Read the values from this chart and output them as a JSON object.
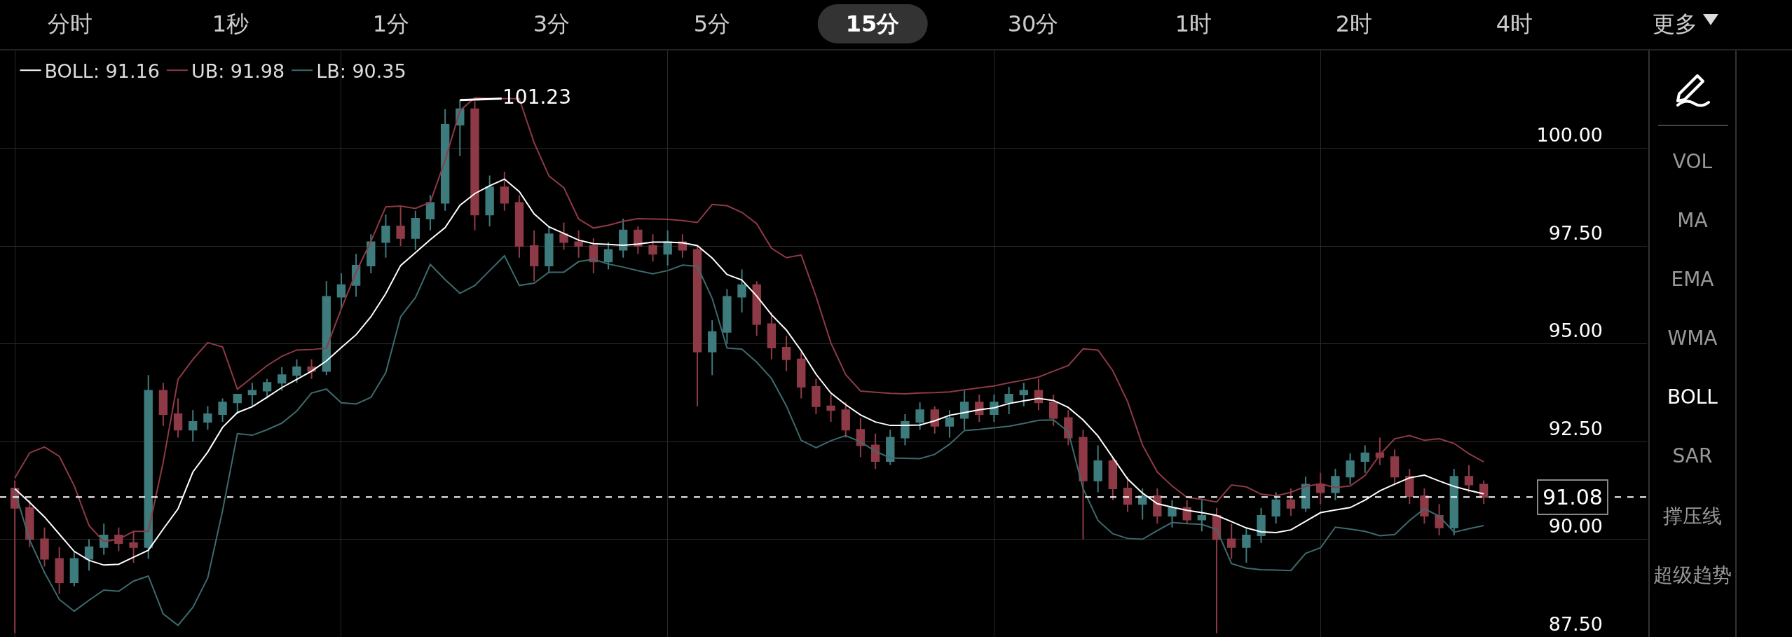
{
  "chart_data": {
    "type": "candlestick",
    "categories": [
      null,
      null,
      null,
      null,
      null,
      null,
      null,
      null,
      null,
      null,
      null,
      null,
      null,
      null,
      null,
      null,
      null,
      null,
      null,
      null,
      null,
      null,
      null,
      null,
      null,
      null,
      null,
      null,
      null,
      null,
      null,
      null,
      null,
      null,
      null,
      null,
      null,
      null,
      null,
      null,
      null,
      null,
      null,
      null,
      null,
      null,
      null,
      null,
      null,
      null,
      null,
      null,
      null,
      null,
      null,
      null,
      null,
      null,
      null,
      null,
      null,
      null,
      null,
      null,
      null,
      null,
      null,
      null,
      null,
      null,
      null,
      null,
      null,
      null,
      null,
      null,
      null,
      null,
      null,
      null,
      null,
      null,
      null,
      null,
      null,
      null,
      null,
      null,
      null,
      null,
      null,
      null,
      null,
      null,
      null,
      null,
      null,
      null,
      null,
      null
    ],
    "ohlc": [
      [
        91.3,
        91.5,
        87.6,
        90.8
      ],
      [
        90.8,
        91.0,
        89.8,
        90.0
      ],
      [
        90.0,
        90.3,
        89.3,
        89.5
      ],
      [
        89.5,
        89.8,
        88.6,
        88.9
      ],
      [
        88.9,
        89.7,
        88.8,
        89.5
      ],
      [
        89.5,
        90.0,
        89.2,
        89.8
      ],
      [
        89.8,
        90.4,
        89.6,
        90.1
      ],
      [
        90.1,
        90.3,
        89.7,
        89.9
      ],
      [
        89.9,
        90.2,
        89.4,
        89.8
      ],
      [
        89.8,
        94.2,
        89.5,
        93.8
      ],
      [
        93.8,
        94.0,
        92.9,
        93.2
      ],
      [
        93.2,
        93.6,
        92.6,
        92.8
      ],
      [
        92.8,
        93.3,
        92.5,
        93.0
      ],
      [
        93.0,
        93.4,
        92.8,
        93.2
      ],
      [
        93.2,
        93.6,
        93.0,
        93.5
      ],
      [
        93.5,
        93.7,
        93.2,
        93.7
      ],
      [
        93.7,
        94.0,
        93.4,
        93.8
      ],
      [
        93.8,
        94.1,
        93.6,
        94.0
      ],
      [
        94.0,
        94.4,
        93.8,
        94.2
      ],
      [
        94.2,
        94.6,
        94.0,
        94.4
      ],
      [
        94.4,
        94.6,
        94.1,
        94.3
      ],
      [
        94.3,
        96.6,
        94.2,
        96.2
      ],
      [
        96.2,
        96.8,
        95.9,
        96.5
      ],
      [
        96.5,
        97.3,
        96.2,
        97.0
      ],
      [
        97.0,
        97.8,
        96.8,
        97.6
      ],
      [
        97.6,
        98.3,
        97.2,
        98.0
      ],
      [
        98.0,
        98.5,
        97.5,
        97.7
      ],
      [
        97.7,
        98.4,
        97.4,
        98.2
      ],
      [
        98.2,
        98.8,
        97.9,
        98.6
      ],
      [
        98.6,
        101.0,
        98.4,
        100.6
      ],
      [
        100.6,
        101.23,
        99.8,
        101.0
      ],
      [
        101.0,
        101.2,
        97.9,
        98.3
      ],
      [
        98.3,
        99.3,
        98.0,
        99.0
      ],
      [
        99.0,
        99.4,
        98.4,
        98.6
      ],
      [
        98.6,
        98.8,
        97.2,
        97.5
      ],
      [
        97.5,
        97.9,
        96.6,
        97.0
      ],
      [
        97.0,
        98.0,
        96.8,
        97.8
      ],
      [
        97.8,
        98.1,
        97.4,
        97.6
      ],
      [
        97.6,
        97.9,
        97.2,
        97.5
      ],
      [
        97.5,
        97.7,
        96.8,
        97.1
      ],
      [
        97.1,
        97.6,
        96.9,
        97.4
      ],
      [
        97.4,
        98.2,
        97.2,
        97.9
      ],
      [
        97.9,
        98.0,
        97.3,
        97.5
      ],
      [
        97.5,
        97.8,
        97.1,
        97.3
      ],
      [
        97.3,
        97.9,
        97.0,
        97.6
      ],
      [
        97.6,
        97.8,
        97.2,
        97.4
      ],
      [
        97.4,
        97.5,
        93.4,
        94.8
      ],
      [
        94.8,
        95.6,
        94.2,
        95.3
      ],
      [
        95.3,
        96.4,
        95.0,
        96.2
      ],
      [
        96.2,
        96.9,
        95.8,
        96.5
      ],
      [
        96.5,
        96.6,
        95.2,
        95.5
      ],
      [
        95.5,
        95.8,
        94.6,
        94.9
      ],
      [
        94.9,
        95.2,
        94.3,
        94.6
      ],
      [
        94.6,
        94.8,
        93.6,
        93.9
      ],
      [
        93.9,
        94.1,
        93.2,
        93.4
      ],
      [
        93.4,
        93.7,
        93.0,
        93.3
      ],
      [
        93.3,
        93.5,
        92.6,
        92.8
      ],
      [
        92.8,
        93.1,
        92.1,
        92.4
      ],
      [
        92.4,
        92.7,
        91.8,
        92.0
      ],
      [
        92.0,
        92.8,
        91.9,
        92.6
      ],
      [
        92.6,
        93.2,
        92.4,
        93.0
      ],
      [
        93.0,
        93.5,
        92.8,
        93.3
      ],
      [
        93.3,
        93.4,
        92.7,
        92.9
      ],
      [
        92.9,
        93.3,
        92.6,
        93.1
      ],
      [
        93.1,
        93.8,
        92.8,
        93.5
      ],
      [
        93.5,
        93.7,
        93.0,
        93.2
      ],
      [
        93.2,
        93.7,
        93.0,
        93.5
      ],
      [
        93.5,
        93.9,
        93.2,
        93.7
      ],
      [
        93.7,
        94.0,
        93.4,
        93.8
      ],
      [
        93.8,
        94.1,
        93.3,
        93.5
      ],
      [
        93.5,
        93.7,
        92.9,
        93.1
      ],
      [
        93.1,
        93.3,
        92.4,
        92.6
      ],
      [
        92.6,
        92.8,
        90.0,
        91.5
      ],
      [
        91.5,
        92.4,
        91.2,
        92.0
      ],
      [
        92.0,
        92.1,
        91.0,
        91.3
      ],
      [
        91.3,
        91.6,
        90.7,
        90.9
      ],
      [
        90.9,
        91.3,
        90.5,
        91.1
      ],
      [
        91.1,
        91.3,
        90.4,
        90.6
      ],
      [
        90.6,
        91.0,
        90.3,
        90.8
      ],
      [
        90.8,
        91.0,
        90.4,
        90.5
      ],
      [
        90.5,
        91.0,
        90.2,
        90.6
      ],
      [
        90.6,
        90.8,
        87.6,
        90.0
      ],
      [
        90.0,
        90.4,
        89.5,
        89.8
      ],
      [
        89.8,
        90.3,
        89.4,
        90.1
      ],
      [
        90.1,
        90.8,
        89.9,
        90.6
      ],
      [
        90.6,
        91.2,
        90.4,
        91.0
      ],
      [
        91.0,
        91.3,
        90.6,
        90.8
      ],
      [
        90.8,
        91.6,
        90.7,
        91.4
      ],
      [
        91.4,
        91.7,
        90.9,
        91.2
      ],
      [
        91.2,
        91.8,
        91.0,
        91.6
      ],
      [
        91.6,
        92.2,
        91.4,
        92.0
      ],
      [
        92.0,
        92.4,
        91.7,
        92.2
      ],
      [
        92.2,
        92.6,
        91.9,
        92.1
      ],
      [
        92.1,
        92.3,
        91.4,
        91.6
      ],
      [
        91.6,
        91.8,
        90.9,
        91.1
      ],
      [
        91.1,
        91.3,
        90.4,
        90.6
      ],
      [
        90.6,
        90.9,
        90.1,
        90.3
      ],
      [
        90.3,
        91.8,
        90.1,
        91.6
      ],
      [
        91.6,
        91.9,
        91.2,
        91.4
      ],
      [
        91.4,
        91.5,
        90.9,
        91.08
      ]
    ],
    "series": [
      {
        "name": "BOLL: 91.16",
        "type": "line",
        "color": "#ffffff",
        "values": [
          91.29,
          90.94,
          90.57,
          90.13,
          89.69,
          89.46,
          89.34,
          89.36,
          89.54,
          89.72,
          90.26,
          90.78,
          91.72,
          92.23,
          92.86,
          93.24,
          93.39,
          93.63,
          93.88,
          94.09,
          94.3,
          94.56,
          94.9,
          95.23,
          95.69,
          96.28,
          97.0,
          97.33,
          97.66,
          97.97,
          98.54,
          98.84,
          99.04,
          99.21,
          98.89,
          98.32,
          97.99,
          97.82,
          97.65,
          97.56,
          97.54,
          97.52,
          97.55,
          97.6,
          97.6,
          97.58,
          97.51,
          97.19,
          96.77,
          96.63,
          96.22,
          95.74,
          95.35,
          94.82,
          94.22,
          93.74,
          93.44,
          93.18,
          93.0,
          92.91,
          92.91,
          92.92,
          93.03,
          93.17,
          93.24,
          93.31,
          93.36,
          93.47,
          93.54,
          93.6,
          93.55,
          93.37,
          93.05,
          92.64,
          92.09,
          91.54,
          91.18,
          90.91,
          90.82,
          90.74,
          90.68,
          90.61,
          90.45,
          90.29,
          90.19,
          90.17,
          90.24,
          90.46,
          90.68,
          90.75,
          90.81,
          91.0,
          91.24,
          91.41,
          91.57,
          91.64,
          91.49,
          91.35,
          91.25,
          91.16
        ]
      },
      {
        "name": "UB: 91.98",
        "type": "line",
        "color": "#8e3a46",
        "values": [
          91.57,
          92.21,
          92.36,
          92.12,
          91.37,
          90.35,
          89.94,
          90.0,
          90.2,
          90.2,
          91.97,
          94.09,
          94.6,
          95.03,
          94.92,
          93.84,
          94.14,
          94.44,
          94.68,
          94.84,
          94.85,
          94.89,
          95.89,
          96.83,
          97.62,
          98.5,
          98.52,
          98.46,
          98.62,
          99.69,
          100.96,
          101.29,
          101.27,
          101.27,
          101.27,
          100.14,
          99.29,
          98.99,
          98.19,
          97.96,
          98.03,
          98.13,
          98.2,
          98.19,
          98.18,
          98.15,
          98.1,
          98.56,
          98.53,
          98.36,
          98.07,
          97.44,
          97.2,
          97.27,
          96.21,
          95.02,
          94.21,
          93.79,
          93.76,
          93.73,
          93.72,
          93.74,
          93.75,
          93.77,
          93.82,
          93.87,
          93.92,
          94.0,
          94.07,
          94.15,
          94.3,
          94.44,
          94.87,
          94.84,
          94.31,
          93.52,
          92.41,
          91.72,
          91.36,
          91.07,
          91.02,
          90.95,
          91.39,
          91.34,
          91.15,
          91.11,
          91.2,
          91.35,
          91.42,
          91.32,
          91.36,
          91.63,
          92.16,
          92.57,
          92.65,
          92.53,
          92.57,
          92.45,
          92.19,
          91.98
        ]
      },
      {
        "name": "LB: 90.35",
        "type": "line",
        "color": "#3d6b6e",
        "values": [
          91.23,
          89.98,
          89.15,
          88.46,
          88.16,
          88.44,
          88.7,
          88.67,
          88.93,
          89.06,
          88.09,
          87.8,
          88.26,
          89.01,
          90.73,
          92.7,
          92.66,
          92.8,
          92.97,
          93.28,
          93.74,
          93.84,
          93.49,
          93.46,
          93.63,
          94.26,
          95.69,
          96.18,
          97.03,
          96.64,
          96.29,
          96.49,
          96.87,
          97.25,
          96.49,
          96.55,
          96.83,
          96.83,
          97.1,
          97.16,
          97.04,
          96.96,
          96.87,
          96.79,
          96.87,
          97.01,
          96.98,
          96.16,
          94.89,
          94.86,
          94.53,
          94.11,
          93.41,
          92.53,
          92.34,
          92.52,
          92.65,
          92.49,
          92.25,
          92.08,
          92.07,
          92.06,
          92.17,
          92.43,
          92.78,
          92.81,
          92.85,
          92.89,
          92.96,
          93.04,
          93.05,
          92.75,
          91.29,
          90.48,
          90.14,
          90.02,
          90.0,
          90.22,
          90.43,
          90.4,
          90.38,
          90.25,
          89.38,
          89.26,
          89.22,
          89.21,
          89.2,
          89.64,
          89.78,
          90.31,
          90.26,
          90.2,
          90.09,
          90.12,
          90.48,
          90.78,
          90.59,
          90.18,
          90.27,
          90.35
        ]
      }
    ],
    "ylim": [
      87.5,
      102.5
    ],
    "yticks": [
      {
        "value": 87.5,
        "label": "87.50"
      },
      {
        "value": 90,
        "label": "90.00"
      },
      {
        "value": 92.5,
        "label": "92.50"
      },
      {
        "value": 95,
        "label": "95.00"
      },
      {
        "value": 97.5,
        "label": "97.50"
      },
      {
        "value": 100,
        "label": "100.00"
      }
    ],
    "tick_labels": "y",
    "grid": true,
    "legend": "top left",
    "ref_lines": [
      {
        "axis": "y",
        "value": 91.08,
        "label": "91.08",
        "color": "#ffffff",
        "line_style": "dashed"
      }
    ],
    "annotations": [
      "101.23",
      "分时",
      "1秒",
      "1分",
      "3分",
      "5分",
      "15分",
      "30分",
      "1时",
      "2时",
      "4时",
      "更多",
      "VOL",
      "MA",
      "EMA",
      "WMA",
      "BOLL",
      "SAR",
      "撑压线",
      "超级趋势"
    ]
  }
}
